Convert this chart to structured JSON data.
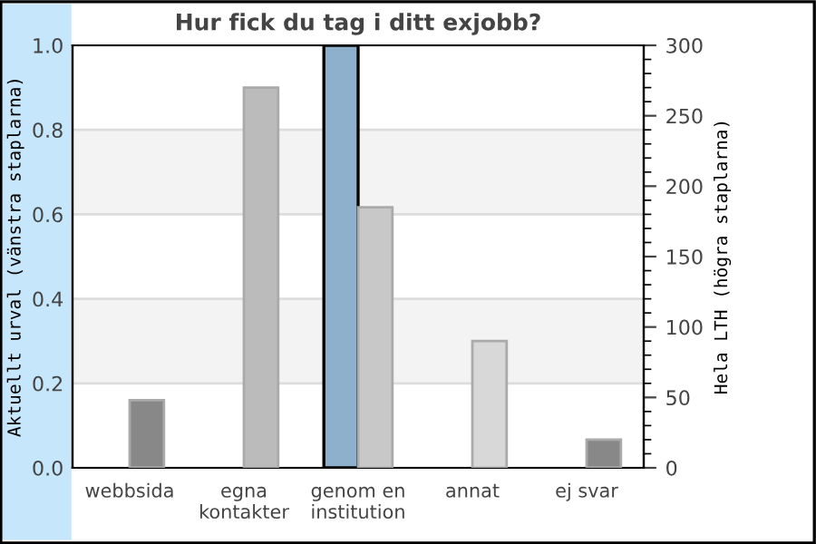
{
  "chart_data": {
    "type": "bar",
    "title": "Hur fick du tag i ditt exjobb?",
    "ylabel": "Aktuellt urval (vänstra staplarna)",
    "y2label": "Hela LTH (högra staplarna)",
    "categories": [
      "webbsida",
      "egna\nkontakter",
      "genom en\ninstitution",
      "annat",
      "ej svar"
    ],
    "series": [
      {
        "color": "#8fb0cc",
        "values": [
          0,
          0,
          1.0,
          0,
          0
        ],
        "axis": "y"
      },
      {
        "colors": [
          "#888888",
          "#bbbbbb",
          "#c8c8c8",
          "#d8d8d8",
          "#888888"
        ],
        "values": [
          48,
          270,
          185,
          90,
          20
        ],
        "axis": "y2"
      }
    ],
    "ylim": [
      0,
      1
    ],
    "yticks": [
      {
        "value": 0,
        "label": "0.0"
      },
      0.2,
      0.4,
      0.6,
      0.8,
      {
        "value": 1,
        "label": "1.0"
      }
    ],
    "y2lim": [
      0,
      300
    ],
    "y2ticks": [
      0,
      {
        "value": 10,
        "label": null
      },
      {
        "value": 20,
        "label": null
      },
      {
        "value": 30,
        "label": null
      },
      {
        "value": 40,
        "label": null
      },
      50,
      {
        "value": 60,
        "label": null
      },
      {
        "value": 70,
        "label": null
      },
      {
        "value": 80,
        "label": null
      },
      {
        "value": 90,
        "label": null
      },
      100,
      {
        "value": 110,
        "label": null
      },
      {
        "value": 120,
        "label": null
      },
      {
        "value": 130,
        "label": null
      },
      {
        "value": 140,
        "label": null
      },
      150,
      {
        "value": 160,
        "label": null
      },
      {
        "value": 170,
        "label": null
      },
      {
        "value": 180,
        "label": null
      },
      {
        "value": 190,
        "label": null
      },
      200,
      {
        "value": 210,
        "label": null
      },
      {
        "value": 220,
        "label": null
      },
      {
        "value": 230,
        "label": null
      },
      {
        "value": 240,
        "label": null
      },
      250,
      {
        "value": 260,
        "label": null
      },
      {
        "value": 270,
        "label": null
      },
      {
        "value": 280,
        "label": null
      },
      {
        "value": 290,
        "label": null
      },
      300
    ],
    "grid": "y",
    "legend": false
  }
}
